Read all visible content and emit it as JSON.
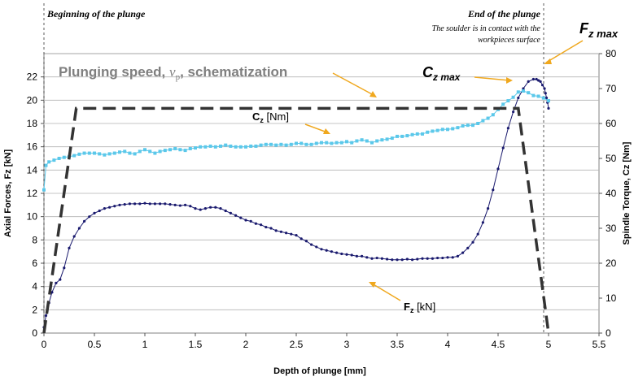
{
  "chart_data": {
    "type": "line",
    "xlabel": "Depth of plunge [mm]",
    "ylabel": "Axial Forces, Fz [kN]",
    "y2label": "Spindle Torque, Cz [Nm]",
    "xlim": [
      0,
      5.5
    ],
    "ylim": [
      0,
      24
    ],
    "y2lim": [
      0,
      80
    ],
    "x_ticks": [
      "0",
      "0.5",
      "1",
      "1.5",
      "2",
      "2.5",
      "3",
      "3.5",
      "4",
      "4.5",
      "5",
      "5.5"
    ],
    "y_ticks": [
      "0",
      "2",
      "4",
      "6",
      "8",
      "10",
      "12",
      "14",
      "16",
      "18",
      "20",
      "22"
    ],
    "y2_ticks": [
      "0",
      "10",
      "20",
      "30",
      "40",
      "50",
      "60",
      "70",
      "80"
    ],
    "grid": "horizontal",
    "annotations": {
      "beginning": "Beginning of the plunge",
      "end": "End of the plunge",
      "contact_note_line1": "The soulder is in contact with the",
      "contact_note_line2": "workpieces surface",
      "fz_max": "F",
      "fz_max_sub": "z max",
      "cz_max": "C",
      "cz_max_sub": "z max",
      "schema_part1": "Plunging speed, ",
      "schema_symbol": "v",
      "schema_symbol_sub": "p",
      "schema_part2": ", schematization",
      "cz_label": "C",
      "cz_label_sub": "z",
      "cz_label_unit": " [Nm]",
      "fz_label": "F",
      "fz_label_sub": "z",
      "fz_label_unit": " [kN]"
    },
    "series": [
      {
        "name": "Fz [kN]",
        "axis": "left",
        "color": "#1a1a6e",
        "x": [
          0,
          0.02,
          0.05,
          0.08,
          0.12,
          0.16,
          0.2,
          0.25,
          0.3,
          0.35,
          0.4,
          0.45,
          0.5,
          0.55,
          0.6,
          0.65,
          0.7,
          0.75,
          0.8,
          0.85,
          0.9,
          0.95,
          1.0,
          1.05,
          1.1,
          1.15,
          1.2,
          1.25,
          1.3,
          1.35,
          1.4,
          1.45,
          1.5,
          1.55,
          1.6,
          1.65,
          1.7,
          1.75,
          1.8,
          1.85,
          1.9,
          1.95,
          2.0,
          2.05,
          2.1,
          2.15,
          2.2,
          2.25,
          2.3,
          2.35,
          2.4,
          2.45,
          2.5,
          2.55,
          2.6,
          2.65,
          2.7,
          2.75,
          2.8,
          2.85,
          2.9,
          2.95,
          3.0,
          3.05,
          3.1,
          3.15,
          3.2,
          3.25,
          3.3,
          3.35,
          3.4,
          3.45,
          3.5,
          3.55,
          3.6,
          3.65,
          3.7,
          3.75,
          3.8,
          3.85,
          3.9,
          3.95,
          4.0,
          4.05,
          4.1,
          4.15,
          4.2,
          4.25,
          4.3,
          4.35,
          4.4,
          4.45,
          4.5,
          4.55,
          4.6,
          4.65,
          4.7,
          4.75,
          4.8,
          4.85,
          4.88,
          4.9,
          4.92,
          4.94,
          4.96,
          4.97,
          4.98,
          4.99,
          5.0
        ],
        "values": [
          0.5,
          1.5,
          2.6,
          3.5,
          4.3,
          4.6,
          5.6,
          7.3,
          8.3,
          9.0,
          9.6,
          10.0,
          10.3,
          10.5,
          10.7,
          10.8,
          10.9,
          11.0,
          11.05,
          11.1,
          11.1,
          11.1,
          11.15,
          11.1,
          11.1,
          11.1,
          11.1,
          11.05,
          11.0,
          10.95,
          11.0,
          10.9,
          10.7,
          10.6,
          10.7,
          10.8,
          10.8,
          10.7,
          10.5,
          10.3,
          10.1,
          9.9,
          9.7,
          9.6,
          9.4,
          9.3,
          9.1,
          9.0,
          8.8,
          8.7,
          8.6,
          8.5,
          8.4,
          8.1,
          7.9,
          7.6,
          7.4,
          7.2,
          7.1,
          7.0,
          6.9,
          6.8,
          6.75,
          6.7,
          6.6,
          6.6,
          6.5,
          6.4,
          6.45,
          6.4,
          6.35,
          6.3,
          6.3,
          6.3,
          6.35,
          6.3,
          6.35,
          6.4,
          6.4,
          6.4,
          6.45,
          6.45,
          6.5,
          6.5,
          6.6,
          6.9,
          7.3,
          7.8,
          8.5,
          9.5,
          10.7,
          12.3,
          14.1,
          15.9,
          17.6,
          19.0,
          20.2,
          21.0,
          21.6,
          21.8,
          21.8,
          21.7,
          21.6,
          21.3,
          21.0,
          20.6,
          20.2,
          19.8,
          19.3
        ]
      },
      {
        "name": "Cz [Nm]",
        "axis": "right",
        "color": "#5bc8ea",
        "x": [
          0,
          0.02,
          0.05,
          0.1,
          0.15,
          0.2,
          0.25,
          0.3,
          0.35,
          0.4,
          0.45,
          0.5,
          0.55,
          0.6,
          0.65,
          0.7,
          0.75,
          0.8,
          0.85,
          0.9,
          0.95,
          1.0,
          1.05,
          1.1,
          1.15,
          1.2,
          1.25,
          1.3,
          1.35,
          1.4,
          1.45,
          1.5,
          1.55,
          1.6,
          1.65,
          1.7,
          1.75,
          1.8,
          1.85,
          1.9,
          1.95,
          2.0,
          2.05,
          2.1,
          2.15,
          2.2,
          2.25,
          2.3,
          2.35,
          2.4,
          2.45,
          2.5,
          2.55,
          2.6,
          2.65,
          2.7,
          2.75,
          2.8,
          2.85,
          2.9,
          2.95,
          3.0,
          3.05,
          3.1,
          3.15,
          3.2,
          3.25,
          3.3,
          3.35,
          3.4,
          3.45,
          3.5,
          3.55,
          3.6,
          3.65,
          3.7,
          3.75,
          3.8,
          3.85,
          3.9,
          3.95,
          4.0,
          4.05,
          4.1,
          4.15,
          4.2,
          4.25,
          4.3,
          4.35,
          4.4,
          4.45,
          4.5,
          4.55,
          4.6,
          4.65,
          4.7,
          4.75,
          4.8,
          4.85,
          4.9,
          4.95,
          5.0
        ],
        "values": [
          41,
          48,
          49,
          49.5,
          50,
          50.3,
          50.5,
          50.8,
          51.2,
          51.5,
          51.5,
          51.5,
          51.3,
          51,
          51.3,
          51.5,
          51.8,
          52,
          51.5,
          51.3,
          52,
          52.5,
          52,
          51.5,
          52,
          52.3,
          52.5,
          52.8,
          52.5,
          52.3,
          52.8,
          53,
          53.3,
          53.3,
          53.5,
          53.3,
          53.5,
          53.8,
          53.5,
          53.3,
          53.3,
          53.3,
          53.5,
          53.5,
          53.8,
          54,
          54,
          53.8,
          54,
          53.8,
          54,
          54.3,
          54.3,
          54,
          54,
          54.3,
          54.5,
          54.5,
          54.3,
          54.5,
          54.5,
          54.8,
          54.5,
          55,
          55.3,
          55,
          54.5,
          55,
          55.3,
          55.5,
          55.8,
          56.3,
          56.3,
          56.5,
          56.8,
          57,
          57,
          57.5,
          57.8,
          58,
          58.3,
          58.3,
          58.5,
          58.8,
          59.3,
          59.5,
          59.5,
          60,
          60.8,
          61.5,
          62.5,
          64,
          65.5,
          66.5,
          67.5,
          69,
          69.3,
          68.8,
          68,
          67.8,
          67.3,
          66.5
        ]
      },
      {
        "name": "Plunging speed, vp, schematization",
        "axis": "left",
        "color": "#333333",
        "style": "dashed",
        "x": [
          0,
          0.32,
          4.7,
          5.0
        ],
        "values": [
          0,
          19.3,
          19.3,
          0
        ]
      }
    ]
  }
}
